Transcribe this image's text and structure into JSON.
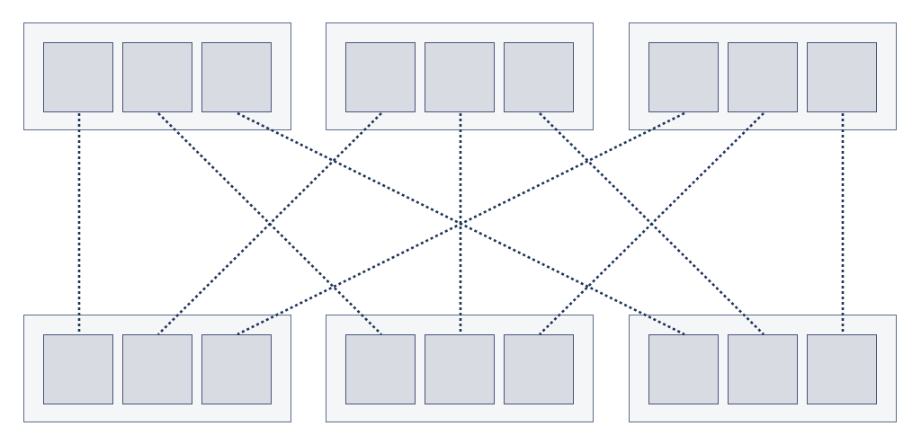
{
  "colors": {
    "background": "#ffffff",
    "group_fill": "#f5f6f8",
    "group_border": "#5c6a8a",
    "cell_fill": "#d9dbe3",
    "cell_border": "#46557a",
    "link_color": "#1f3556"
  },
  "top_row": [
    {
      "cells": 3
    },
    {
      "cells": 3
    },
    {
      "cells": 3
    }
  ],
  "bottom_row": [
    {
      "cells": 3
    },
    {
      "cells": 3
    },
    {
      "cells": 3
    }
  ],
  "links": [
    {
      "from": [
        0,
        0
      ],
      "to": [
        0,
        0
      ]
    },
    {
      "from": [
        0,
        1
      ],
      "to": [
        1,
        0
      ]
    },
    {
      "from": [
        0,
        2
      ],
      "to": [
        2,
        0
      ]
    },
    {
      "from": [
        1,
        0
      ],
      "to": [
        0,
        1
      ]
    },
    {
      "from": [
        1,
        1
      ],
      "to": [
        1,
        1
      ]
    },
    {
      "from": [
        1,
        2
      ],
      "to": [
        2,
        1
      ]
    },
    {
      "from": [
        2,
        0
      ],
      "to": [
        0,
        2
      ]
    },
    {
      "from": [
        2,
        1
      ],
      "to": [
        1,
        2
      ]
    },
    {
      "from": [
        2,
        2
      ],
      "to": [
        2,
        2
      ]
    }
  ]
}
